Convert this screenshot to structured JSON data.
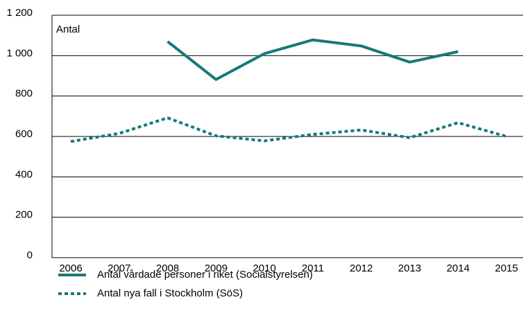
{
  "chart_data": {
    "type": "line",
    "y_label": "Antal",
    "categories": [
      "2006",
      "2007",
      "2008",
      "2009",
      "2010",
      "2011",
      "2012",
      "2013",
      "2014",
      "2015"
    ],
    "series": [
      {
        "name": "Antal vårdade personer i riket (Socialstyrelsen)",
        "color": "#16797b",
        "style": "solid",
        "values": [
          null,
          null,
          1070,
          882,
          1010,
          1078,
          1048,
          968,
          1020,
          null
        ]
      },
      {
        "name": "Antal nya fall i Stockholm (SöS)",
        "color": "#16797b",
        "style": "dotted",
        "values": [
          575,
          615,
          692,
          603,
          578,
          610,
          632,
          594,
          668,
          600
        ]
      }
    ],
    "ylim": [
      0,
      1200
    ],
    "yticks": [
      0,
      200,
      400,
      600,
      800,
      {
        "value": 1000,
        "label": "1 000"
      },
      {
        "value": 1200,
        "label": "1 200"
      }
    ],
    "grid": true,
    "legend": "bottom"
  }
}
